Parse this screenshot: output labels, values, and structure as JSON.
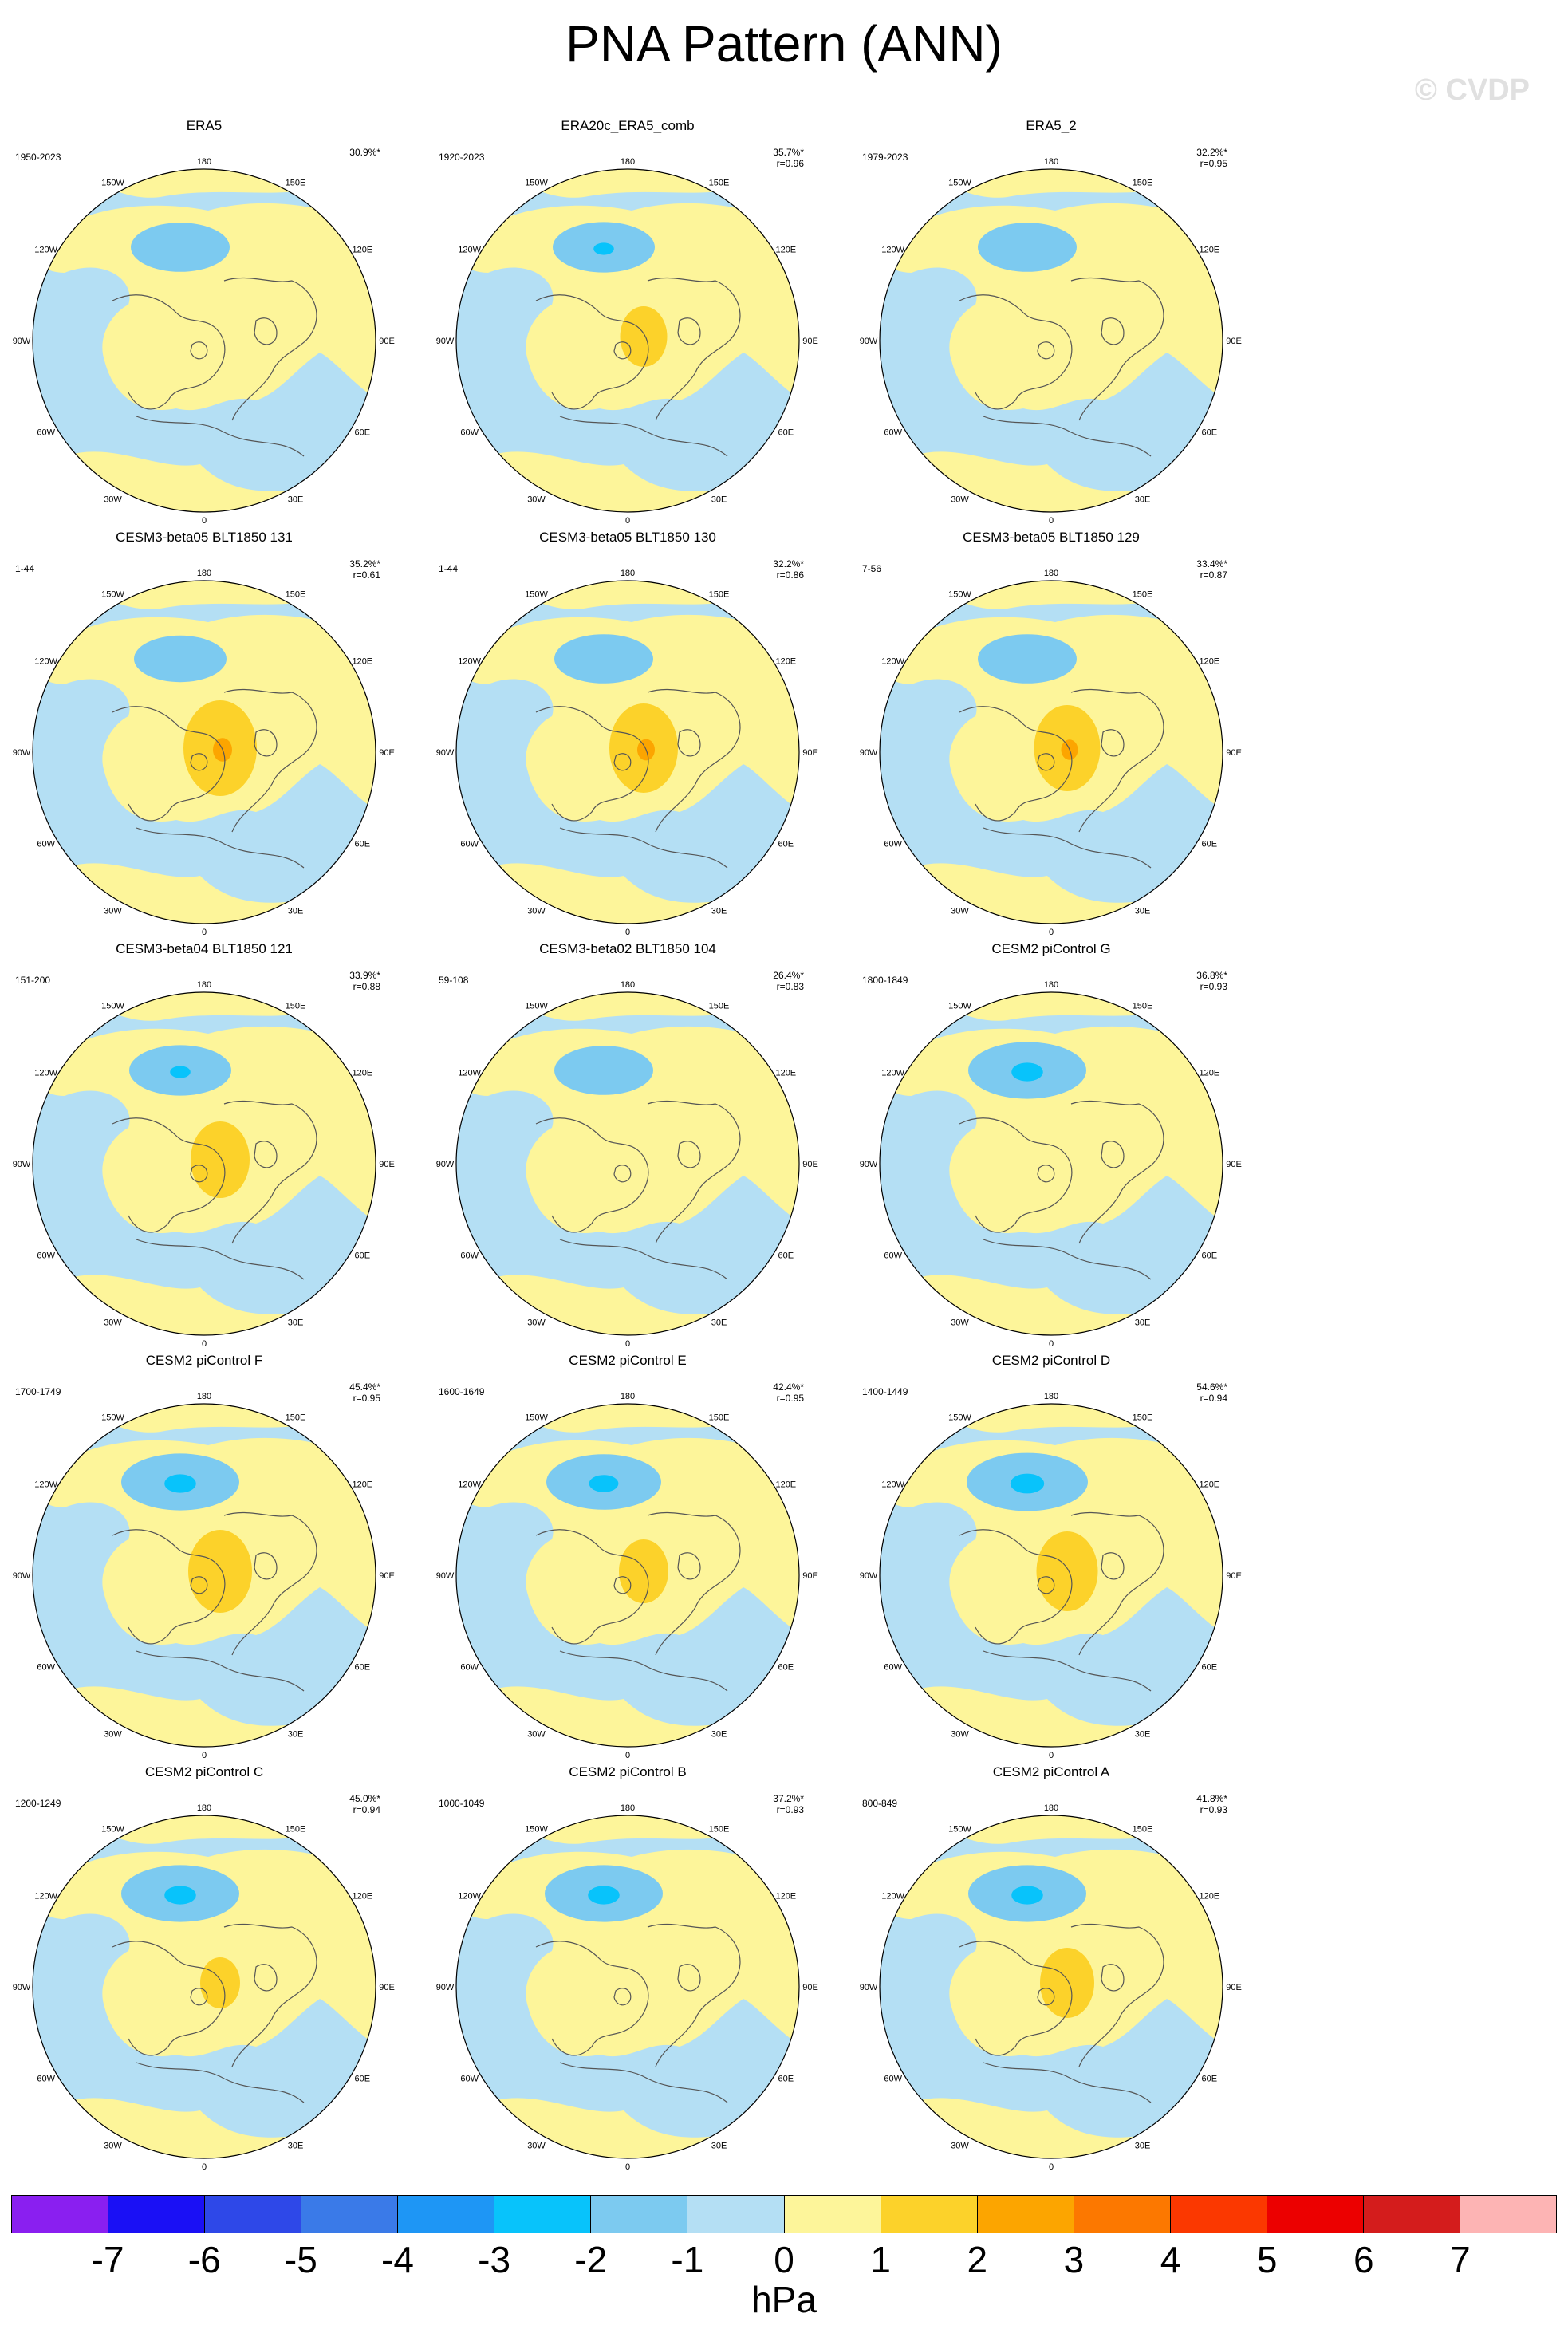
{
  "title": "PNA Pattern (ANN)",
  "watermark": "© CVDP",
  "longitude_labels": [
    "180",
    "150E",
    "120E",
    "90E",
    "60E",
    "30E",
    "0",
    "30W",
    "60W",
    "90W",
    "120W",
    "150W"
  ],
  "panels": [
    {
      "title": "ERA5",
      "years": "1950-2023",
      "pct": "30.9%*",
      "r": "",
      "pos_blob": 0.0,
      "neg_blob": 0.55
    },
    {
      "title": "ERA20c_ERA5_comb",
      "years": "1920-2023",
      "pct": "35.7%*",
      "r": "r=0.96",
      "pos_blob": 0.45,
      "neg_blob": 0.6
    },
    {
      "title": "ERA5_2",
      "years": "1979-2023",
      "pct": "32.2%*",
      "r": "r=0.95",
      "pos_blob": 0.0,
      "neg_blob": 0.55
    },
    {
      "title": "CESM3-beta05 BLT1850 131",
      "years": "1-44",
      "pct": "35.2%*",
      "r": "r=0.61",
      "pos_blob": 1.0,
      "neg_blob": 0.45
    },
    {
      "title": "CESM3-beta05 BLT1850 130",
      "years": "1-44",
      "pct": "32.2%*",
      "r": "r=0.86",
      "pos_blob": 0.9,
      "neg_blob": 0.55
    },
    {
      "title": "CESM3-beta05 BLT1850 129",
      "years": "7-56",
      "pct": "33.4%*",
      "r": "r=0.87",
      "pos_blob": 0.85,
      "neg_blob": 0.55
    },
    {
      "title": "CESM3-beta04 BLT1850 121",
      "years": "151-200",
      "pct": "33.9%*",
      "r": "r=0.88",
      "pos_blob": 0.7,
      "neg_blob": 0.6
    },
    {
      "title": "CESM3-beta02 BLT1850 104",
      "years": "59-108",
      "pct": "26.4%*",
      "r": "r=0.83",
      "pos_blob": 0.0,
      "neg_blob": 0.55
    },
    {
      "title": "CESM2 piControl G",
      "years": "1800-1849",
      "pct": "36.8%*",
      "r": "r=0.93",
      "pos_blob": 0.0,
      "neg_blob": 0.85
    },
    {
      "title": "CESM2 piControl F",
      "years": "1700-1749",
      "pct": "45.4%*",
      "r": "r=0.95",
      "pos_blob": 0.8,
      "neg_blob": 0.85
    },
    {
      "title": "CESM2 piControl E",
      "years": "1600-1649",
      "pct": "42.4%*",
      "r": "r=0.95",
      "pos_blob": 0.5,
      "neg_blob": 0.8
    },
    {
      "title": "CESM2 piControl D",
      "years": "1400-1449",
      "pct": "54.6%*",
      "r": "r=0.94",
      "pos_blob": 0.75,
      "neg_blob": 0.9
    },
    {
      "title": "CESM2 piControl C",
      "years": "1200-1249",
      "pct": "45.0%*",
      "r": "r=0.94",
      "pos_blob": 0.3,
      "neg_blob": 0.85
    },
    {
      "title": "CESM2 piControl B",
      "years": "1000-1049",
      "pct": "37.2%*",
      "r": "r=0.93",
      "pos_blob": 0.0,
      "neg_blob": 0.85
    },
    {
      "title": "CESM2 piControl A",
      "years": "800-849",
      "pct": "41.8%*",
      "r": "r=0.93",
      "pos_blob": 0.6,
      "neg_blob": 0.85
    }
  ],
  "colorbar": {
    "colors": [
      "#8a1ff0",
      "#1a10f5",
      "#2e48e8",
      "#3a7ae8",
      "#1e96f5",
      "#08c3fb",
      "#7ccaf0",
      "#b4dff4",
      "#fdf59a",
      "#fcd22a",
      "#fca500",
      "#fc7800",
      "#fb3800",
      "#ec0000",
      "#d41c1c",
      "#fdb4b4"
    ],
    "ticks": [
      "-7",
      "-6",
      "-5",
      "-4",
      "-3",
      "-2",
      "-1",
      "0",
      "1",
      "2",
      "3",
      "4",
      "5",
      "6",
      "7"
    ],
    "units": "hPa"
  },
  "palette": {
    "ocean_neg": "#b4dff4",
    "land_pos": "#fdf59a",
    "neg1": "#7ccaf0",
    "neg2": "#08c3fb",
    "pos1": "#fcd22a",
    "pos2": "#fca500",
    "coast": "#555555"
  }
}
